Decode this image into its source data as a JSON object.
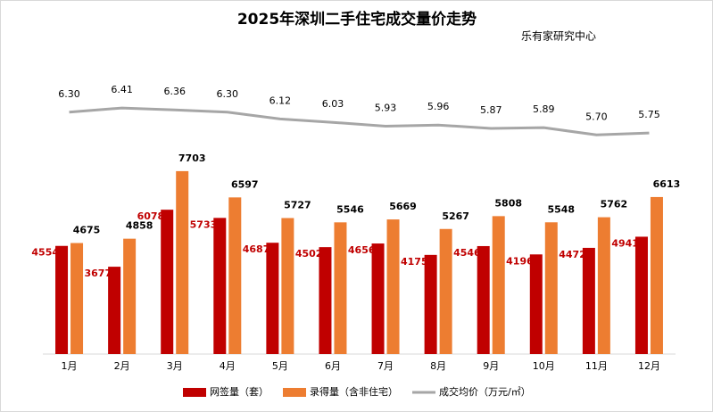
{
  "chart_data": {
    "type": "bar-line",
    "title": "2025年深圳二手住宅成交量价走势",
    "source": "乐有家研究中心",
    "categories": [
      "1月",
      "2月",
      "3月",
      "4月",
      "5月",
      "6月",
      "7月",
      "8月",
      "9月",
      "10月",
      "11月",
      "12月"
    ],
    "ylim": [
      0,
      8000
    ],
    "y2lim": [
      5,
      7
    ],
    "series": [
      {
        "name": "网签量（套）",
        "color": "#c00000",
        "type": "bar",
        "values": [
          4554,
          3677,
          6078,
          5733,
          4687,
          4502,
          4656,
          4175,
          4546,
          4196,
          4472,
          4941
        ]
      },
      {
        "name": "录得量（含非住宅）",
        "color": "#ed7d31",
        "type": "bar",
        "values": [
          4675,
          4858,
          7703,
          6597,
          5727,
          5546,
          5669,
          5267,
          5808,
          5548,
          5762,
          6613
        ]
      },
      {
        "name": "成交均价（万元/㎡）",
        "color": "#a6a6a6",
        "type": "line",
        "axis": "y2",
        "values": [
          6.3,
          6.41,
          6.36,
          6.3,
          6.12,
          6.03,
          5.93,
          5.96,
          5.87,
          5.89,
          5.7,
          5.75
        ],
        "value_labels": [
          "6.30",
          "6.41",
          "6.36",
          "6.30",
          "6.12",
          "6.03",
          "5.93",
          "5.96",
          "5.87",
          "5.89",
          "5.70",
          "5.75"
        ]
      }
    ]
  }
}
